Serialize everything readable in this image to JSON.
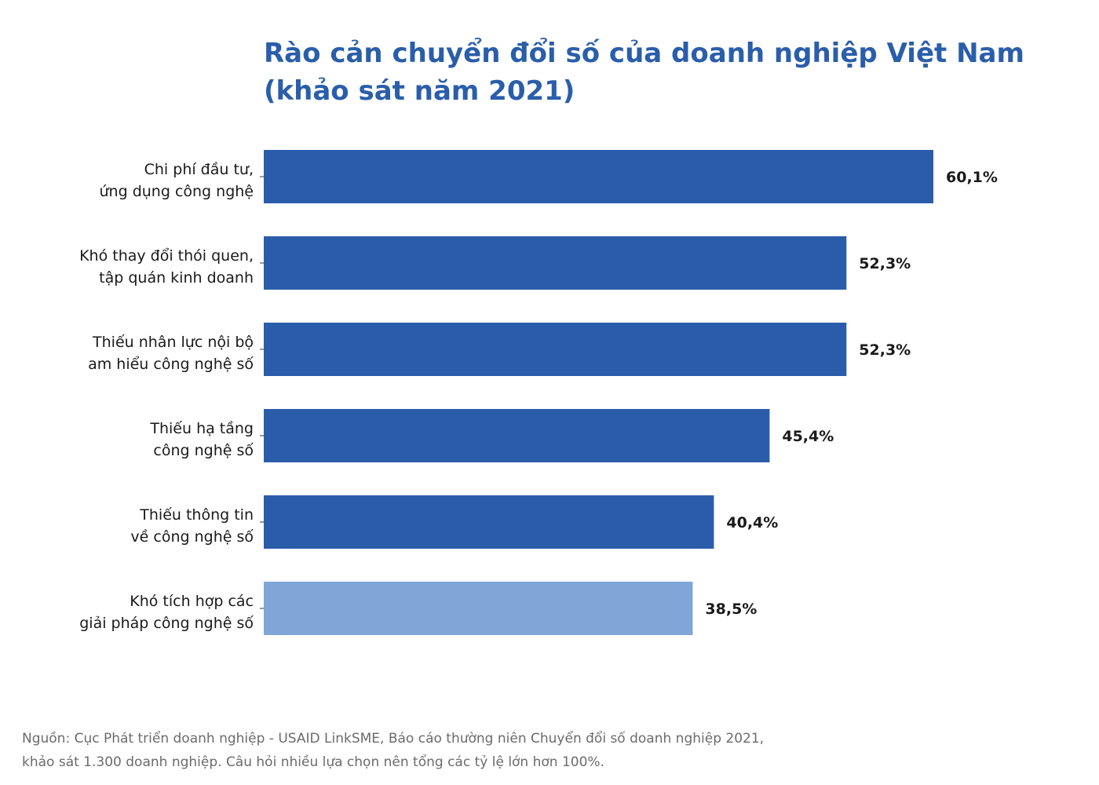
{
  "chart_data": {
    "type": "bar",
    "orientation": "horizontal",
    "title": [
      "Rào cản chuyển đổi số của doanh nghiệp Việt Nam",
      "(khảo sát năm 2021)"
    ],
    "categories": [
      [
        "Chi phí đầu tư,",
        "ứng dụng công nghệ"
      ],
      [
        "Khó thay đổi thói quen,",
        "tập quán kinh doanh"
      ],
      [
        "Thiếu nhân lực nội bộ",
        "am hiểu công nghệ số"
      ],
      [
        "Thiếu hạ tầng",
        "công nghệ số"
      ],
      [
        "Thiếu thông tin",
        "về công nghệ số"
      ],
      [
        "Khó tích hợp các",
        "giải pháp công nghệ số"
      ]
    ],
    "values": [
      60.1,
      52.3,
      52.3,
      45.4,
      40.4,
      38.5
    ],
    "value_labels": [
      "60,1%",
      "52,3%",
      "52,3%",
      "45,4%",
      "40,4%",
      "38,5%"
    ],
    "unit": "%",
    "xlim": [
      0,
      60.1
    ],
    "grid": false,
    "legend": "none",
    "colors": {
      "primary": "#2a5caa",
      "highlight": "#80a6d8",
      "highlighted_index": 5
    },
    "source": [
      "Nguồn: Cục Phát triển doanh nghiệp - USAID LinkSME, Báo cáo thường niên Chuyển đổi số doanh nghiệp 2021,",
      "khảo sát 1.300 doanh nghiệp. Câu hỏi nhiều lựa chọn nên tổng các tỷ lệ lớn hơn 100%."
    ]
  }
}
